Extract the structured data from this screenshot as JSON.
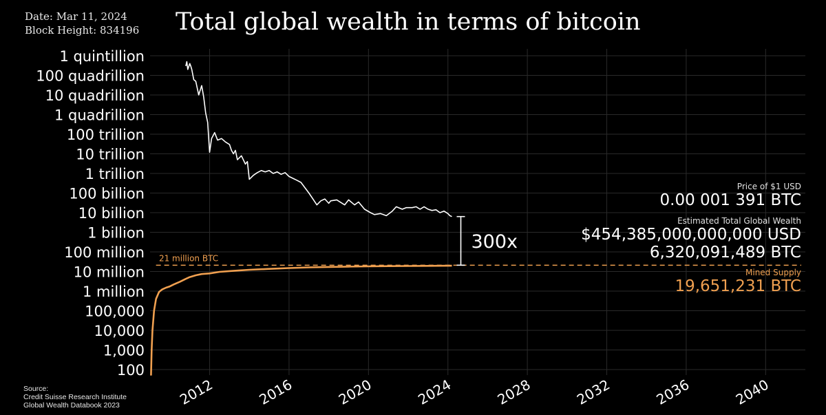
{
  "header": {
    "date": "Date: Mar 11, 2024",
    "block_height": "Block Height: 834196",
    "title": "Total global wealth in terms of bitcoin"
  },
  "source": {
    "line1": "Source:",
    "line2": "Credit Suisse Research Institute",
    "line3": "Global Wealth Databook 2023"
  },
  "panel": {
    "price_label": "Price of $1 USD",
    "price_value": "0.00 001 391 BTC",
    "wealth_label": "Estimated Total Global Wealth",
    "wealth_usd": "$454,385,000,000,000 USD",
    "wealth_btc": "6,320,091,489 BTC",
    "supply_label": "Mined Supply",
    "supply_value": "19,651,231 BTC"
  },
  "annotations": {
    "cap_label": "21 million BTC",
    "multiple_label": "300x"
  },
  "colors": {
    "background": "#000000",
    "wealth_line": "#ffffff",
    "supply_line": "#f0a050",
    "grid": "#2a2a2a"
  },
  "chart_data": {
    "type": "line",
    "title": "Total global wealth in terms of bitcoin",
    "y_scale": "log",
    "ylim": [
      100,
      1e+18
    ],
    "xlim": [
      2009.0,
      2042.0
    ],
    "y_ticks": [
      {
        "value": 1e+18,
        "label": "1 quintillion"
      },
      {
        "value": 1e+17,
        "label": "100 quadrillion"
      },
      {
        "value": 1e+16,
        "label": "10 quadrillion"
      },
      {
        "value": 1000000000000000.0,
        "label": "1 quadrillion"
      },
      {
        "value": 100000000000000.0,
        "label": "100 trillion"
      },
      {
        "value": 10000000000000.0,
        "label": "10 trillion"
      },
      {
        "value": 1000000000000.0,
        "label": "1 trillion"
      },
      {
        "value": 100000000000.0,
        "label": "100 billion"
      },
      {
        "value": 10000000000.0,
        "label": "10 billion"
      },
      {
        "value": 1000000000.0,
        "label": "1 billion"
      },
      {
        "value": 100000000.0,
        "label": "100 million"
      },
      {
        "value": 10000000.0,
        "label": "10 million"
      },
      {
        "value": 1000000.0,
        "label": "1 million"
      },
      {
        "value": 100000.0,
        "label": "100,000"
      },
      {
        "value": 10000.0,
        "label": "10,000"
      },
      {
        "value": 1000.0,
        "label": "1,000"
      },
      {
        "value": 100.0,
        "label": "100"
      }
    ],
    "x_ticks": [
      {
        "value": 2012,
        "label": "2012"
      },
      {
        "value": 2016,
        "label": "2016"
      },
      {
        "value": 2020,
        "label": "2020"
      },
      {
        "value": 2024,
        "label": "2024"
      },
      {
        "value": 2028,
        "label": "2028"
      },
      {
        "value": 2032,
        "label": "2032"
      },
      {
        "value": 2036,
        "label": "2036"
      },
      {
        "value": 2040,
        "label": "2040"
      }
    ],
    "reference_line": {
      "value": 21000000,
      "label": "21 million BTC"
    },
    "series": [
      {
        "name": "Estimated Total Global Wealth (BTC)",
        "x": [
          2010.8,
          2010.85,
          2010.9,
          2011.0,
          2011.05,
          2011.1,
          2011.2,
          2011.3,
          2011.45,
          2011.6,
          2011.7,
          2011.8,
          2011.9,
          2012.0,
          2012.1,
          2012.25,
          2012.4,
          2012.6,
          2012.8,
          2013.0,
          2013.1,
          2013.2,
          2013.3,
          2013.4,
          2013.6,
          2013.8,
          2013.9,
          2014.0,
          2014.2,
          2014.4,
          2014.6,
          2014.8,
          2015.0,
          2015.2,
          2015.4,
          2015.6,
          2015.8,
          2016.0,
          2016.3,
          2016.6,
          2017.0,
          2017.2,
          2017.4,
          2017.6,
          2017.8,
          2018.0,
          2018.1,
          2018.4,
          2018.8,
          2019.0,
          2019.3,
          2019.5,
          2019.8,
          2020.1,
          2020.3,
          2020.6,
          2020.9,
          2021.2,
          2021.4,
          2021.7,
          2021.9,
          2022.2,
          2022.4,
          2022.6,
          2022.8,
          2023.0,
          2023.2,
          2023.4,
          2023.6,
          2023.8,
          2024.0,
          2024.1,
          2024.2
        ],
        "y": [
          3e+17,
          5e+17,
          2e+17,
          4e+17,
          3e+17,
          2e+17,
          6e+16,
          5e+16,
          1e+16,
          3e+16,
          8000000000000000.0,
          1200000000000000.0,
          400000000000000.0,
          12000000000000.0,
          60000000000000.0,
          120000000000000.0,
          50000000000000.0,
          60000000000000.0,
          40000000000000.0,
          30000000000000.0,
          15000000000000.0,
          10000000000000.0,
          15000000000000.0,
          5000000000000.0,
          8000000000000.0,
          3000000000000.0,
          4000000000000.0,
          500000000000.0,
          800000000000.0,
          1100000000000.0,
          1400000000000.0,
          1200000000000.0,
          1400000000000.0,
          1000000000000.0,
          1200000000000.0,
          900000000000.0,
          1100000000000.0,
          700000000000.0,
          500000000000.0,
          350000000000.0,
          100000000000.0,
          50000000000.0,
          25000000000.0,
          40000000000.0,
          50000000000.0,
          30000000000.0,
          40000000000.0,
          45000000000.0,
          25000000000.0,
          45000000000.0,
          25000000000.0,
          35000000000.0,
          15000000000.0,
          10000000000.0,
          8000000000.0,
          9000000000.0,
          7000000000.0,
          12000000000.0,
          20000000000.0,
          15000000000.0,
          18000000000.0,
          18000000000.0,
          20000000000.0,
          15000000000.0,
          20000000000.0,
          15000000000.0,
          13000000000.0,
          14000000000.0,
          10000000000.0,
          12000000000.0,
          9000000000.0,
          7000000000.0,
          6300000000.0
        ]
      },
      {
        "name": "Mined Supply (BTC)",
        "x": [
          2009.05,
          2009.08,
          2009.12,
          2009.2,
          2009.3,
          2009.45,
          2009.6,
          2009.8,
          2010.0,
          2010.2,
          2010.5,
          2010.8,
          2011.0,
          2011.3,
          2011.6,
          2012.0,
          2012.5,
          2013.0,
          2013.5,
          2014.0,
          2015.0,
          2016.0,
          2017.0,
          2018.0,
          2019.0,
          2020.0,
          2021.0,
          2022.0,
          2023.0,
          2024.2
        ],
        "y": [
          50,
          1000,
          10000,
          100000,
          400000,
          900000,
          1200000,
          1500000,
          1750000,
          2200000,
          3000000,
          4200000,
          5200000,
          6400000,
          7400000,
          8000000,
          9600000,
          10500000,
          11400000,
          12200000,
          13600000,
          15000000,
          16200000,
          17100000,
          17800000,
          18300000,
          18800000,
          19100000,
          19400000,
          19651231
        ]
      }
    ],
    "annotation_multiple": {
      "x": 2024.2,
      "from": 21000000,
      "to": 6320091489,
      "label": "300x"
    }
  }
}
